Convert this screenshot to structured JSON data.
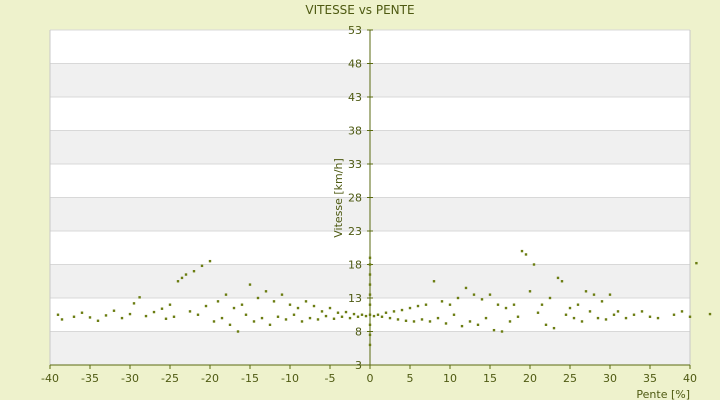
{
  "chart_data": {
    "type": "scatter",
    "title": "VITESSE vs PENTE",
    "xlabel": "Pente [%]",
    "ylabel": "Vitesse [km/h]",
    "xlim": [
      -40,
      40
    ],
    "ylim": [
      3,
      53
    ],
    "x_ticks": [
      -40,
      -35,
      -30,
      -25,
      -20,
      -15,
      -10,
      -5,
      0,
      5,
      10,
      15,
      20,
      25,
      30,
      35,
      40
    ],
    "y_ticks": [
      3,
      8,
      13,
      18,
      23,
      28,
      33,
      38,
      43,
      48,
      53
    ],
    "grid": true,
    "band_colors": [
      "#ffffff",
      "#f0f0f0"
    ],
    "point_color": "#6b7d12",
    "background_color": "#eef2cc",
    "series": [
      {
        "values": [
          [
            -39,
            10.5
          ],
          [
            -38.5,
            9.8
          ],
          [
            -37,
            10.2
          ],
          [
            -36,
            10.8
          ],
          [
            -35,
            10.1
          ],
          [
            -34,
            9.6
          ],
          [
            -33,
            10.4
          ],
          [
            -32,
            11.1
          ],
          [
            -31,
            10.0
          ],
          [
            -30,
            10.6
          ],
          [
            -29.5,
            12.2
          ],
          [
            -28.8,
            13.1
          ],
          [
            -28,
            10.3
          ],
          [
            -27,
            10.9
          ],
          [
            -26,
            11.4
          ],
          [
            -25.5,
            9.9
          ],
          [
            -25,
            12.0
          ],
          [
            -24.5,
            10.2
          ],
          [
            -24,
            15.5
          ],
          [
            -23.5,
            16.0
          ],
          [
            -23,
            16.5
          ],
          [
            -22.5,
            11.0
          ],
          [
            -22,
            17.0
          ],
          [
            -21.5,
            10.5
          ],
          [
            -21,
            17.8
          ],
          [
            -20.5,
            11.8
          ],
          [
            -20,
            18.5
          ],
          [
            -19.5,
            9.5
          ],
          [
            -19,
            12.5
          ],
          [
            -18.5,
            10.0
          ],
          [
            -18,
            13.5
          ],
          [
            -17.5,
            9.0
          ],
          [
            -17,
            11.5
          ],
          [
            -16.5,
            8.0
          ],
          [
            -16,
            12.0
          ],
          [
            -15.5,
            10.5
          ],
          [
            -15,
            15.0
          ],
          [
            -14.5,
            9.5
          ],
          [
            -14,
            13.0
          ],
          [
            -13.5,
            10.0
          ],
          [
            -13,
            14.0
          ],
          [
            -12.5,
            9.0
          ],
          [
            -12,
            12.5
          ],
          [
            -11.5,
            10.2
          ],
          [
            -11,
            13.5
          ],
          [
            -10.5,
            9.8
          ],
          [
            -10,
            12.0
          ],
          [
            -9.5,
            10.5
          ],
          [
            -9,
            11.5
          ],
          [
            -8.5,
            9.5
          ],
          [
            -8,
            12.5
          ],
          [
            -7.5,
            10.0
          ],
          [
            -7,
            11.8
          ],
          [
            -6.5,
            9.8
          ],
          [
            -6,
            11.0
          ],
          [
            -5.5,
            10.3
          ],
          [
            -5,
            11.5
          ],
          [
            -4.5,
            9.9
          ],
          [
            -4,
            10.8
          ],
          [
            -3.5,
            10.2
          ],
          [
            -3,
            10.9
          ],
          [
            -2.5,
            10.0
          ],
          [
            -2,
            10.6
          ],
          [
            -1.5,
            10.2
          ],
          [
            -1,
            10.5
          ],
          [
            -0.5,
            10.3
          ],
          [
            0,
            6.0
          ],
          [
            0,
            7.5
          ],
          [
            0,
            9.0
          ],
          [
            0,
            10.5
          ],
          [
            0,
            12.0
          ],
          [
            0,
            13.5
          ],
          [
            0,
            15.0
          ],
          [
            0,
            16.5
          ],
          [
            0,
            18.0
          ],
          [
            0,
            19.0
          ],
          [
            0.5,
            10.3
          ],
          [
            1,
            10.5
          ],
          [
            1.5,
            10.2
          ],
          [
            2,
            10.8
          ],
          [
            2.5,
            10.0
          ],
          [
            3,
            11.0
          ],
          [
            3.5,
            9.8
          ],
          [
            4,
            11.2
          ],
          [
            4.5,
            9.6
          ],
          [
            5,
            11.5
          ],
          [
            5.5,
            9.5
          ],
          [
            6,
            11.8
          ],
          [
            6.5,
            9.8
          ],
          [
            7,
            12.0
          ],
          [
            7.5,
            9.5
          ],
          [
            8,
            15.5
          ],
          [
            8.5,
            10.0
          ],
          [
            9,
            12.5
          ],
          [
            9.5,
            9.2
          ],
          [
            10,
            12.0
          ],
          [
            10.5,
            10.5
          ],
          [
            11,
            13.0
          ],
          [
            11.5,
            8.8
          ],
          [
            12,
            14.5
          ],
          [
            12.5,
            9.5
          ],
          [
            13,
            13.5
          ],
          [
            13.5,
            9.0
          ],
          [
            14,
            12.8
          ],
          [
            14.5,
            10.0
          ],
          [
            15,
            13.5
          ],
          [
            15.5,
            8.2
          ],
          [
            16,
            12.0
          ],
          [
            16.5,
            8.0
          ],
          [
            17,
            11.5
          ],
          [
            17.5,
            9.5
          ],
          [
            18,
            12.0
          ],
          [
            18.5,
            10.2
          ],
          [
            19,
            20.0
          ],
          [
            19.5,
            19.5
          ],
          [
            20,
            14.0
          ],
          [
            20.5,
            18.0
          ],
          [
            21,
            10.8
          ],
          [
            21.5,
            12.0
          ],
          [
            22,
            9.0
          ],
          [
            22.5,
            13.0
          ],
          [
            23,
            8.5
          ],
          [
            23.5,
            16.0
          ],
          [
            24,
            15.5
          ],
          [
            24.5,
            10.5
          ],
          [
            25,
            11.5
          ],
          [
            25.5,
            10.0
          ],
          [
            26,
            12.0
          ],
          [
            26.5,
            9.5
          ],
          [
            27,
            14.0
          ],
          [
            27.5,
            11.0
          ],
          [
            28,
            13.5
          ],
          [
            28.5,
            10.0
          ],
          [
            29,
            12.5
          ],
          [
            29.5,
            9.8
          ],
          [
            30,
            13.5
          ],
          [
            30.5,
            10.5
          ],
          [
            31,
            11.0
          ],
          [
            32,
            10.0
          ],
          [
            33,
            10.5
          ],
          [
            34,
            11.0
          ],
          [
            35,
            10.2
          ],
          [
            36,
            10.0
          ],
          [
            38,
            10.5
          ],
          [
            39,
            11.0
          ],
          [
            40,
            10.2
          ],
          [
            40.8,
            18.2
          ],
          [
            42.5,
            10.6
          ]
        ]
      }
    ]
  }
}
